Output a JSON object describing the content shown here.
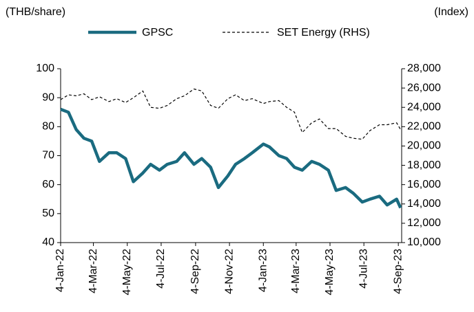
{
  "chart_data": {
    "type": "line",
    "y_label": "(THB/share)",
    "y2_label": "(Index)",
    "x": [
      "2022-01-04",
      "2022-01-18",
      "2022-02-01",
      "2022-02-15",
      "2022-03-01",
      "2022-03-15",
      "2022-04-01",
      "2022-04-15",
      "2022-05-01",
      "2022-05-15",
      "2022-06-01",
      "2022-06-15",
      "2022-07-01",
      "2022-07-15",
      "2022-08-01",
      "2022-08-15",
      "2022-09-01",
      "2022-09-15",
      "2022-10-01",
      "2022-10-15",
      "2022-11-01",
      "2022-11-15",
      "2022-12-01",
      "2022-12-15",
      "2023-01-04",
      "2023-01-15",
      "2023-02-01",
      "2023-02-15",
      "2023-03-01",
      "2023-03-15",
      "2023-04-01",
      "2023-04-15",
      "2023-05-01",
      "2023-05-15",
      "2023-06-01",
      "2023-06-15",
      "2023-07-01",
      "2023-07-15",
      "2023-08-01",
      "2023-08-15",
      "2023-09-01",
      "2023-09-08"
    ],
    "series": [
      {
        "name": "GPSC",
        "color": "#1a6b80",
        "values": [
          86,
          85,
          79,
          76,
          75,
          68,
          71,
          71,
          69,
          61,
          64,
          67,
          65,
          67,
          68,
          71,
          67,
          69,
          66,
          59,
          63,
          67,
          69,
          71,
          74,
          73,
          70,
          69,
          66,
          65,
          68,
          67,
          65,
          58,
          59,
          57,
          54,
          55,
          56,
          53,
          55,
          52
        ]
      },
      {
        "name": "SET Energy (RHS)",
        "color": "#000000",
        "axis": "y2",
        "dashed": true,
        "values": [
          24800,
          25300,
          25200,
          25400,
          24800,
          25100,
          24600,
          24900,
          24500,
          25000,
          25700,
          24000,
          23900,
          24200,
          24900,
          25200,
          25900,
          25700,
          24200,
          23900,
          24900,
          25300,
          24700,
          24900,
          24400,
          24600,
          24700,
          24000,
          23500,
          21400,
          22400,
          22800,
          21800,
          21800,
          21000,
          20800,
          20700,
          21600,
          22200,
          22200,
          22400,
          21700
        ]
      }
    ],
    "xlim": [
      "2022-01-04",
      "2023-09-10"
    ],
    "xticks": [
      {
        "value": "2022-01-04",
        "label": "4-Jan-22"
      },
      {
        "value": "2022-03-04",
        "label": "4-Mar-22"
      },
      {
        "value": "2022-05-04",
        "label": "4-May-22"
      },
      {
        "value": "2022-07-04",
        "label": "4-Jul-22"
      },
      {
        "value": "2022-09-04",
        "label": "4-Sep-22"
      },
      {
        "value": "2022-11-04",
        "label": "4-Nov-22"
      },
      {
        "value": "2023-01-04",
        "label": "4-Jan-23"
      },
      {
        "value": "2023-03-04",
        "label": "4-Mar-23"
      },
      {
        "value": "2023-05-04",
        "label": "4-May-23"
      },
      {
        "value": "2023-07-04",
        "label": "4-Jul-23"
      },
      {
        "value": "2023-09-04",
        "label": "4-Sep-23"
      }
    ],
    "ylim": [
      40,
      100
    ],
    "yticks": [
      40,
      50,
      60,
      70,
      80,
      90,
      100
    ],
    "y2lim": [
      10000,
      28000
    ],
    "y2ticks": [
      {
        "value": 10000,
        "label": "10,000"
      },
      {
        "value": 12000,
        "label": "12,000"
      },
      {
        "value": 14000,
        "label": "14,000"
      },
      {
        "value": 16000,
        "label": "16,000"
      },
      {
        "value": 18000,
        "label": "18,000"
      },
      {
        "value": 20000,
        "label": "20,000"
      },
      {
        "value": 22000,
        "label": "22,000"
      },
      {
        "value": 24000,
        "label": "24,000"
      },
      {
        "value": 26000,
        "label": "26,000"
      },
      {
        "value": 28000,
        "label": "28,000"
      }
    ],
    "grid": false
  }
}
